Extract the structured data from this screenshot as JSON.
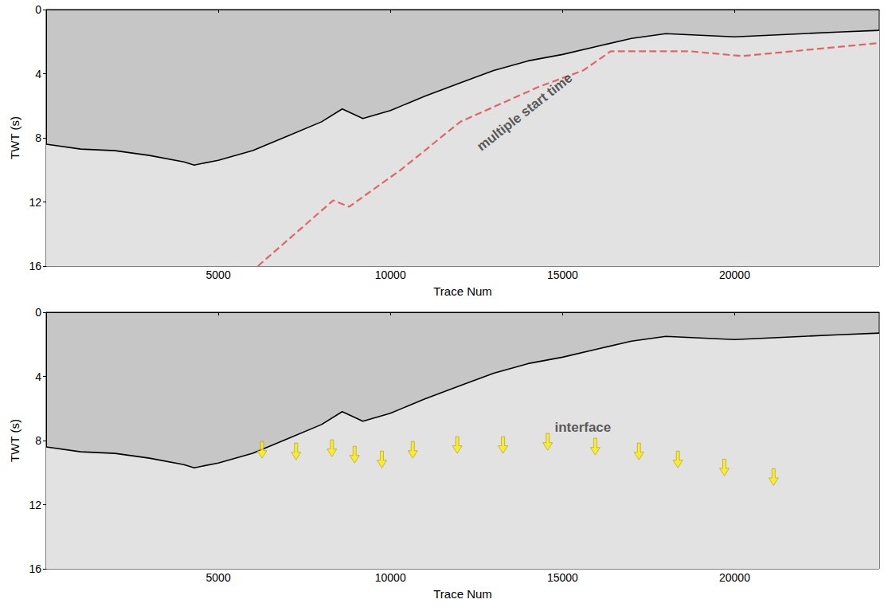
{
  "chart_data": [
    {
      "type": "line",
      "xlabel": "Trace Num",
      "ylabel": "TWT (s)",
      "xlim": [
        0,
        24200
      ],
      "xticks": [
        5000,
        10000,
        15000,
        20000
      ],
      "ylim": [
        16,
        0
      ],
      "yticks": [
        0,
        4,
        8,
        12,
        16
      ],
      "grid": false,
      "series": [
        {
          "color": "#000000",
          "line_style": "solid",
          "x": [
            0,
            1000,
            2000,
            3000,
            4000,
            4300,
            5000,
            6000,
            7000,
            8000,
            8600,
            9200,
            10000,
            11000,
            12000,
            13000,
            14000,
            15000,
            16000,
            17000,
            18000,
            19000,
            20000,
            21000,
            22000,
            23000,
            24200
          ],
          "values": [
            8.4,
            8.7,
            8.8,
            9.1,
            9.5,
            9.7,
            9.4,
            8.8,
            7.9,
            7.0,
            6.2,
            6.8,
            6.3,
            5.4,
            4.6,
            3.8,
            3.2,
            2.8,
            2.3,
            1.8,
            1.5,
            1.6,
            1.7,
            1.6,
            1.5,
            1.4,
            1.3
          ]
        },
        {
          "color": "#e06666",
          "line_style": "dashed",
          "x": [
            6150,
            8340,
            8800,
            10300,
            12030,
            14330,
            15600,
            16400,
            18700,
            20200,
            21700,
            24130
          ],
          "values": [
            16.0,
            11.9,
            12.3,
            10.0,
            7.0,
            4.8,
            3.8,
            2.6,
            2.6,
            2.9,
            2.6,
            2.1
          ]
        }
      ],
      "annotations": [
        {
          "text": "multiple start time",
          "x": 13900,
          "y": 6.4
        }
      ]
    },
    {
      "type": "line",
      "xlabel": "Trace Num",
      "ylabel": "TWT (s)",
      "xlim": [
        0,
        24200
      ],
      "xticks": [
        5000,
        10000,
        15000,
        20000
      ],
      "ylim": [
        16,
        0
      ],
      "yticks": [
        0,
        4,
        8,
        12,
        16
      ],
      "grid": false,
      "series": [
        {
          "color": "#000000",
          "line_style": "solid",
          "x": [
            0,
            1000,
            2000,
            3000,
            4000,
            4300,
            5000,
            6000,
            7000,
            8000,
            8600,
            9200,
            10000,
            11000,
            12000,
            13000,
            14000,
            15000,
            16000,
            17000,
            18000,
            19000,
            20000,
            21000,
            22000,
            23000,
            24200
          ],
          "values": [
            8.4,
            8.7,
            8.8,
            9.1,
            9.5,
            9.7,
            9.4,
            8.8,
            7.9,
            7.0,
            6.2,
            6.8,
            6.3,
            5.4,
            4.6,
            3.8,
            3.2,
            2.8,
            2.3,
            1.8,
            1.5,
            1.6,
            1.7,
            1.6,
            1.5,
            1.4,
            1.3
          ]
        },
        {
          "type": "scatter",
          "marker": "arrow",
          "color": "#ffee00",
          "x": [
            6270,
            7260,
            8300,
            8960,
            9750,
            10650,
            11940,
            13270,
            14570,
            15950,
            17220,
            18350,
            19700,
            21130
          ],
          "values": [
            9.1,
            9.2,
            9.0,
            9.4,
            9.7,
            9.1,
            8.8,
            8.8,
            8.6,
            8.9,
            9.2,
            9.7,
            10.2,
            10.8
          ]
        }
      ],
      "annotations": [
        {
          "text": "interface",
          "x": 15590,
          "y": 7.2
        }
      ]
    }
  ]
}
